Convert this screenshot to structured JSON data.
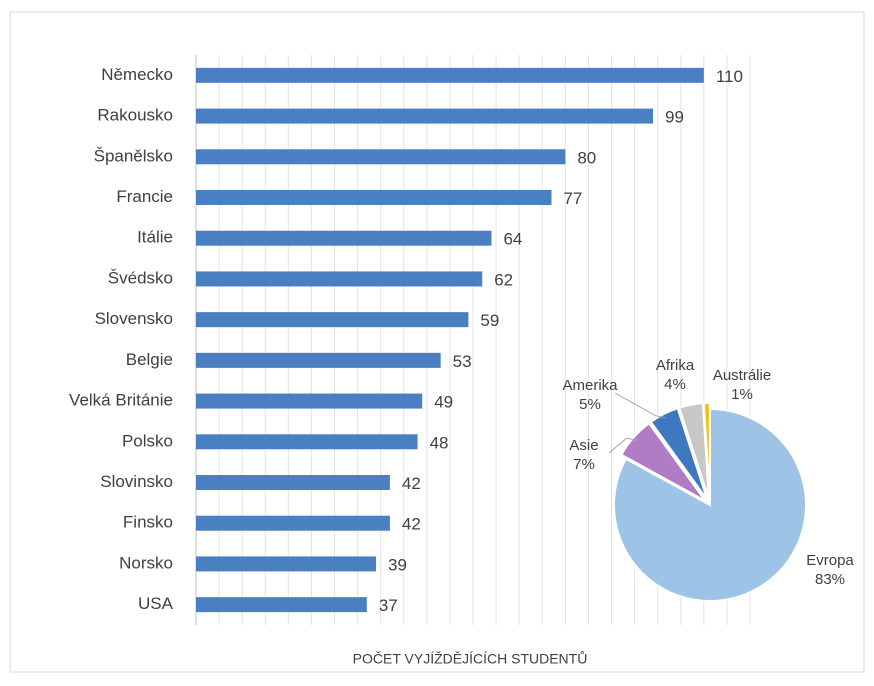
{
  "chart_data": [
    {
      "type": "bar",
      "orientation": "horizontal",
      "categories": [
        "Německo",
        "Rakousko",
        "Španělsko",
        "Francie",
        "Itálie",
        "Švédsko",
        "Slovensko",
        "Belgie",
        "Velká Británie",
        "Polsko",
        "Slovinsko",
        "Finsko",
        "Norsko",
        "USA"
      ],
      "values": [
        110,
        99,
        80,
        77,
        64,
        62,
        59,
        53,
        49,
        48,
        42,
        42,
        39,
        37
      ],
      "color": "#4a7fc1",
      "xlabel": "POČET VYJÍŽDĚJÍCÍCH STUDENTŮ",
      "xlim": [
        0,
        120
      ],
      "xgrid_step": 5,
      "grid": true
    },
    {
      "type": "pie",
      "categories": [
        "Evropa",
        "Asie",
        "Amerika",
        "Afrika",
        "Austrálie"
      ],
      "values": [
        83,
        7,
        5,
        4,
        1
      ],
      "value_labels": [
        "83%",
        "7%",
        "5%",
        "4%",
        "1%"
      ],
      "colors": [
        "#9dc3e6",
        "#b07cc6",
        "#3d78c0",
        "#c8c8c8",
        "#f2c200"
      ]
    }
  ]
}
